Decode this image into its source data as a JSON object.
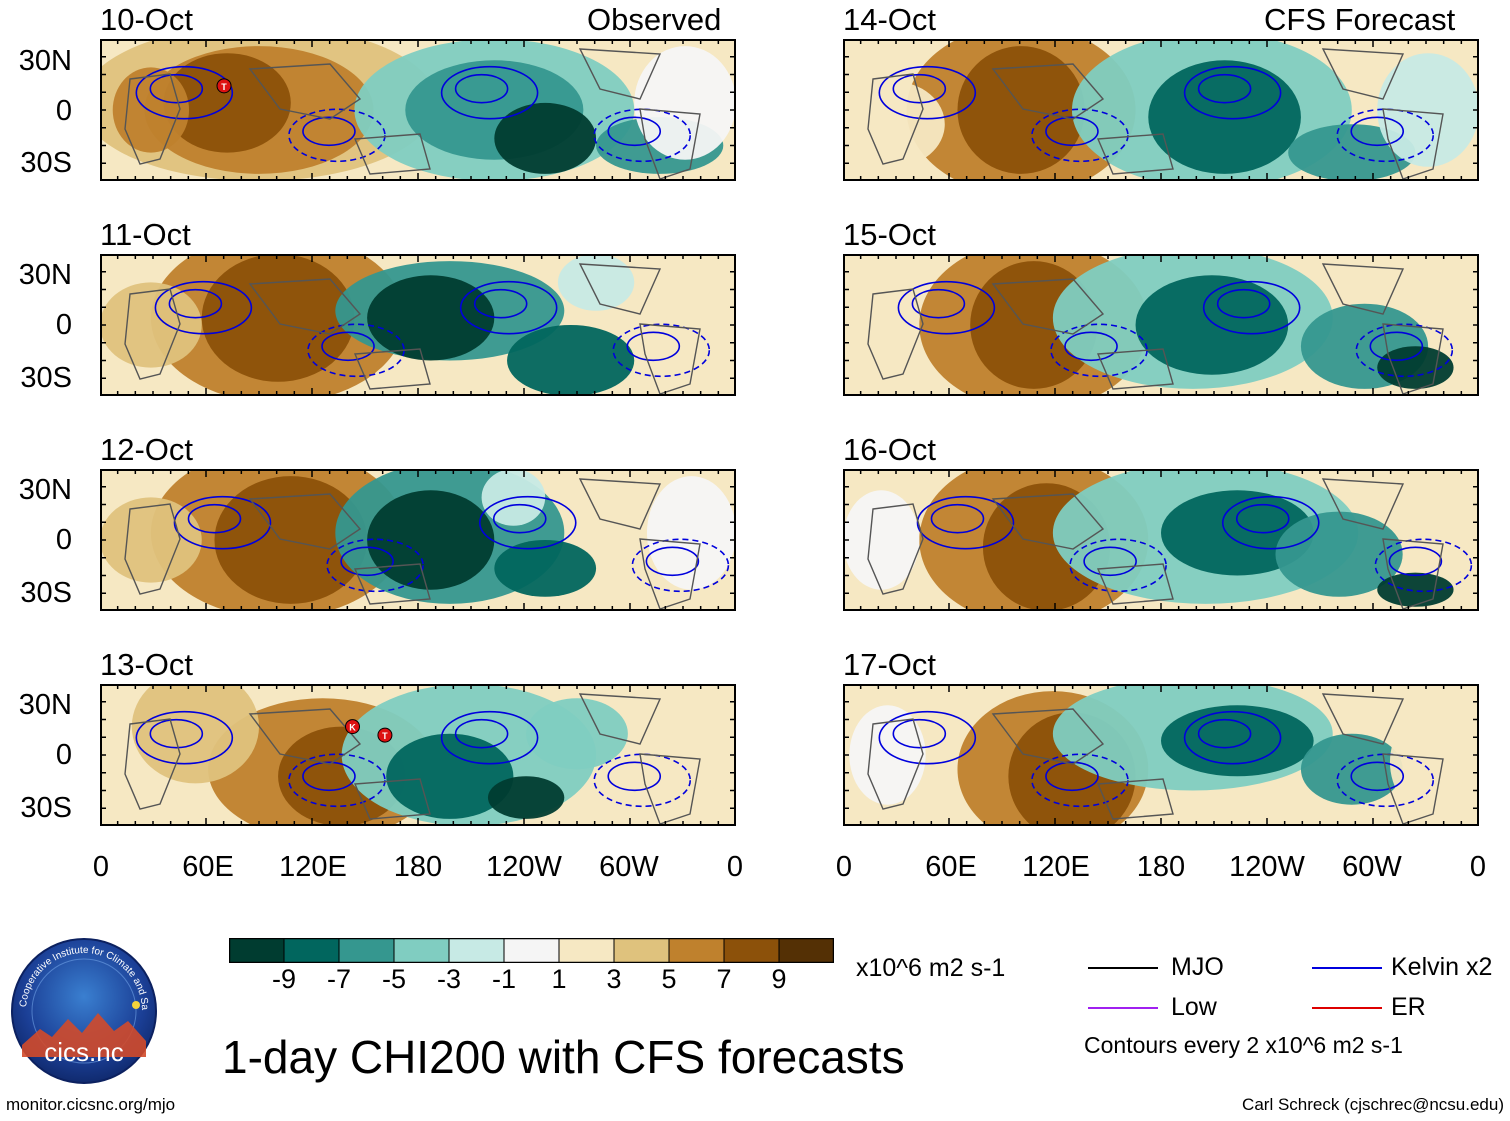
{
  "observed_label": "Observed",
  "forecast_label": "CFS Forecast",
  "panels": {
    "left": [
      {
        "date": "10-Oct"
      },
      {
        "date": "11-Oct"
      },
      {
        "date": "12-Oct"
      },
      {
        "date": "13-Oct"
      }
    ],
    "right": [
      {
        "date": "14-Oct"
      },
      {
        "date": "15-Oct"
      },
      {
        "date": "16-Oct"
      },
      {
        "date": "17-Oct"
      }
    ]
  },
  "lat_labels": [
    "30N",
    "0",
    "30S"
  ],
  "lon_labels": [
    "0",
    "60E",
    "120E",
    "180",
    "120W",
    "60W",
    "0"
  ],
  "storm_markers": {
    "p0": [
      "T"
    ],
    "p3": [
      "K",
      "T"
    ]
  },
  "colorbar": {
    "ticks": [
      "-9",
      "-7",
      "-5",
      "-3",
      "-1",
      "1",
      "3",
      "5",
      "7",
      "9"
    ],
    "colors": [
      "#003c30",
      "#01665e",
      "#35978f",
      "#80cdc1",
      "#c7eae5",
      "#f5f5f5",
      "#f6e8c3",
      "#dfc27d",
      "#bf812d",
      "#8c510a",
      "#543005"
    ],
    "units": "x10^6 m2 s-1"
  },
  "legend": {
    "mjo": "MJO",
    "kelvin": "Kelvin x2",
    "low": "Low",
    "er": "ER",
    "contour_note": "Contours every 2 x10^6 m2 s-1",
    "colors": {
      "mjo": "#000000",
      "kelvin": "#0000dd",
      "low": "#a020f0",
      "er": "#dd0000"
    }
  },
  "title": "1-day CHI200 with CFS forecasts",
  "logo_text": "cics.nc",
  "logo_ring_text": "Cooperative Institute for Climate and Satellites",
  "source_url": "monitor.cicsnc.org/mjo",
  "author": "Carl Schreck (cjschrec@ncsu.edu)"
}
